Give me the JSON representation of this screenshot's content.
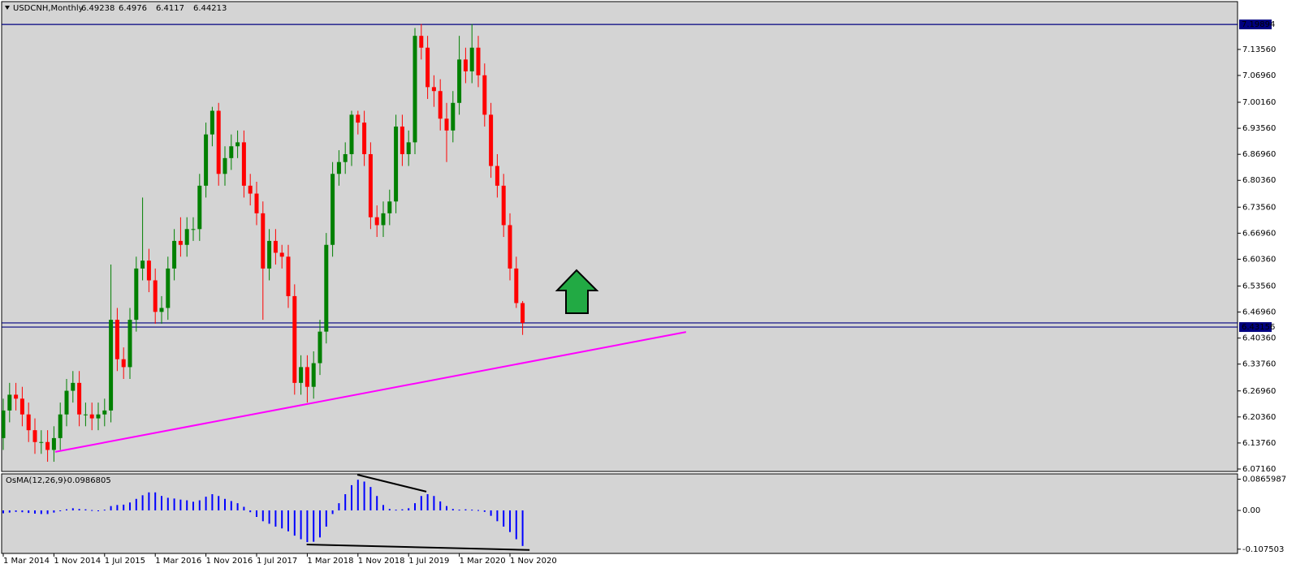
{
  "chart_data": {
    "type": "candlestick",
    "title": "USDCNH,Monthly",
    "open": [
      6.15,
      6.22,
      6.26,
      6.25,
      6.21,
      6.17,
      6.14,
      6.14,
      6.12,
      6.15,
      6.21,
      6.27,
      6.29,
      6.21,
      6.21,
      6.2,
      6.21,
      6.22,
      6.45,
      6.35,
      6.33,
      6.45,
      6.58,
      6.6,
      6.55,
      6.47,
      6.48,
      6.58,
      6.65,
      6.64,
      6.68,
      6.68,
      6.79,
      6.92,
      6.98,
      6.82,
      6.86,
      6.89,
      6.9,
      6.79,
      6.77,
      6.72,
      6.58,
      6.65,
      6.62,
      6.61,
      6.51,
      6.29,
      6.33,
      6.28,
      6.34,
      6.42,
      6.64,
      6.82,
      6.85,
      6.87,
      6.97,
      6.95,
      6.87,
      6.71,
      6.69,
      6.72,
      6.75,
      6.94,
      6.87,
      6.9,
      7.17,
      7.14,
      7.04,
      7.03,
      6.96,
      6.93,
      7.0,
      7.11,
      7.08,
      7.14,
      7.07,
      6.97,
      6.84,
      6.79,
      6.69,
      6.58,
      6.49238
    ],
    "high": [
      6.25,
      6.29,
      6.29,
      6.28,
      6.24,
      6.2,
      6.17,
      6.17,
      6.18,
      6.24,
      6.3,
      6.32,
      6.32,
      6.24,
      6.24,
      6.24,
      6.25,
      6.59,
      6.48,
      6.38,
      6.48,
      6.61,
      6.76,
      6.63,
      6.58,
      6.51,
      6.61,
      6.68,
      6.71,
      6.71,
      6.71,
      6.82,
      6.95,
      6.99,
      7.0,
      6.89,
      6.92,
      6.93,
      6.93,
      6.82,
      6.8,
      6.75,
      6.68,
      6.68,
      6.64,
      6.64,
      6.54,
      6.36,
      6.36,
      6.37,
      6.45,
      6.67,
      6.85,
      6.88,
      6.9,
      6.98,
      6.98,
      6.98,
      6.9,
      6.74,
      6.75,
      6.78,
      6.97,
      6.97,
      6.93,
      7.19,
      7.2,
      7.17,
      7.07,
      7.06,
      7.0,
      7.03,
      7.17,
      7.14,
      7.2,
      7.17,
      7.1,
      7.0,
      6.87,
      6.82,
      6.72,
      6.61,
      6.4976
    ],
    "low": [
      6.12,
      6.19,
      6.22,
      6.18,
      6.14,
      6.11,
      6.11,
      6.09,
      6.09,
      6.12,
      6.18,
      6.24,
      6.18,
      6.18,
      6.17,
      6.17,
      6.18,
      6.19,
      6.32,
      6.3,
      6.3,
      6.42,
      6.55,
      6.52,
      6.44,
      6.44,
      6.45,
      6.55,
      6.61,
      6.61,
      6.65,
      6.65,
      6.76,
      6.89,
      6.79,
      6.79,
      6.83,
      6.86,
      6.76,
      6.74,
      6.69,
      6.45,
      6.55,
      6.59,
      6.58,
      6.48,
      6.26,
      6.26,
      6.24,
      6.25,
      6.31,
      6.39,
      6.61,
      6.79,
      6.82,
      6.84,
      6.92,
      6.84,
      6.68,
      6.66,
      6.66,
      6.69,
      6.72,
      6.84,
      6.84,
      6.87,
      7.11,
      7.01,
      6.99,
      6.93,
      6.85,
      6.9,
      6.97,
      7.05,
      7.05,
      7.04,
      6.94,
      6.81,
      6.76,
      6.66,
      6.55,
      6.48,
      6.4117
    ],
    "close": [
      6.22,
      6.26,
      6.25,
      6.21,
      6.17,
      6.14,
      6.14,
      6.12,
      6.15,
      6.21,
      6.27,
      6.29,
      6.21,
      6.21,
      6.2,
      6.21,
      6.22,
      6.45,
      6.35,
      6.33,
      6.45,
      6.58,
      6.6,
      6.55,
      6.47,
      6.48,
      6.58,
      6.65,
      6.64,
      6.68,
      6.68,
      6.79,
      6.92,
      6.98,
      6.82,
      6.86,
      6.89,
      6.9,
      6.79,
      6.77,
      6.72,
      6.58,
      6.65,
      6.62,
      6.61,
      6.51,
      6.29,
      6.33,
      6.28,
      6.34,
      6.42,
      6.64,
      6.82,
      6.85,
      6.87,
      6.97,
      6.95,
      6.87,
      6.71,
      6.69,
      6.72,
      6.75,
      6.94,
      6.87,
      6.9,
      7.17,
      7.14,
      7.04,
      7.03,
      6.96,
      6.93,
      7.0,
      7.11,
      7.08,
      7.14,
      7.07,
      6.97,
      6.84,
      6.79,
      6.69,
      6.58,
      6.49238,
      6.44213
    ],
    "colors": {
      "up": "#008000",
      "down": "#ff0000",
      "level": "#000080",
      "trend": "#ff00ff",
      "background": "#d4d4d4"
    },
    "ylim": [
      6.0654,
      7.2609
    ],
    "yticks": [
      {
        "value": 7.1356,
        "label": "7.13560"
      },
      {
        "value": 7.0696,
        "label": "7.06960"
      },
      {
        "value": 7.0016,
        "label": "7.00160"
      },
      {
        "value": 6.9356,
        "label": "6.93560"
      },
      {
        "value": 6.8696,
        "label": "6.86960"
      },
      {
        "value": 6.8036,
        "label": "6.80360"
      },
      {
        "value": 6.7356,
        "label": "6.73560"
      },
      {
        "value": 6.6696,
        "label": "6.66960"
      },
      {
        "value": 6.6036,
        "label": "6.60360"
      },
      {
        "value": 6.5356,
        "label": "6.53560"
      },
      {
        "value": 6.4696,
        "label": "6.46960"
      },
      {
        "value": 6.4036,
        "label": "6.40360"
      },
      {
        "value": 6.3376,
        "label": "6.33760"
      },
      {
        "value": 6.2696,
        "label": "6.26960"
      },
      {
        "value": 6.2036,
        "label": "6.20360"
      },
      {
        "value": 6.1376,
        "label": "6.13760"
      },
      {
        "value": 6.0716,
        "label": "6.07160"
      }
    ],
    "xlim": [
      -0.513,
      194.872
    ],
    "xticks": [
      {
        "value": 0,
        "label": "1 Mar 2014"
      },
      {
        "value": 8,
        "label": "1 Nov 2014"
      },
      {
        "value": 16,
        "label": "1 Jul 2015"
      },
      {
        "value": 24,
        "label": "1 Mar 2016"
      },
      {
        "value": 32,
        "label": "1 Nov 2016"
      },
      {
        "value": 40,
        "label": "1 Jul 2017"
      },
      {
        "value": 48,
        "label": "1 Mar 2018"
      },
      {
        "value": 56,
        "label": "1 Nov 2018"
      },
      {
        "value": 64,
        "label": "1 Jul 2019"
      },
      {
        "value": 72,
        "label": "1 Mar 2020"
      },
      {
        "value": 80,
        "label": "1 Nov 2020"
      }
    ],
    "levels": [
      7.19894,
      6.43156
    ],
    "trendline": {
      "x": [
        8.2,
        107.8
      ],
      "y": [
        6.115,
        6.419
      ]
    },
    "indicator": {
      "name": "OsMA(12,26,9)",
      "color": "#0000ff",
      "values": [
        -0.008,
        -0.006,
        -0.004,
        -0.005,
        -0.007,
        -0.009,
        -0.01,
        -0.01,
        -0.006,
        -0.002,
        0.003,
        0.006,
        0.004,
        0.003,
        0.001,
        -0.001,
        0.002,
        0.012,
        0.015,
        0.016,
        0.022,
        0.032,
        0.042,
        0.05,
        0.05,
        0.04,
        0.035,
        0.033,
        0.03,
        0.028,
        0.024,
        0.028,
        0.038,
        0.045,
        0.04,
        0.032,
        0.026,
        0.02,
        0.01,
        -0.005,
        -0.018,
        -0.03,
        -0.037,
        -0.045,
        -0.05,
        -0.058,
        -0.07,
        -0.08,
        -0.088,
        -0.087,
        -0.075,
        -0.045,
        -0.01,
        0.02,
        0.045,
        0.07,
        0.085,
        0.08,
        0.065,
        0.04,
        0.015,
        0.004,
        0.002,
        0.003,
        0.006,
        0.02,
        0.04,
        0.045,
        0.04,
        0.025,
        0.012,
        0.004,
        0.002,
        0.003,
        0.002,
        0.001,
        -0.004,
        -0.015,
        -0.03,
        -0.045,
        -0.06,
        -0.08,
        -0.0986805
      ],
      "ylim": [
        -0.1193,
        0.1013
      ],
      "yticks": [
        0.0865987,
        {
          "value": 0,
          "label": "0.00"
        },
        -0.107503
      ],
      "divergence": [
        {
          "x": [
            55.9,
            66.8
          ],
          "y": [
            0.099,
            0.052
          ]
        },
        {
          "x": [
            47.9,
            83.1
          ],
          "y": [
            -0.0945,
            -0.1098
          ]
        }
      ]
    }
  }
}
